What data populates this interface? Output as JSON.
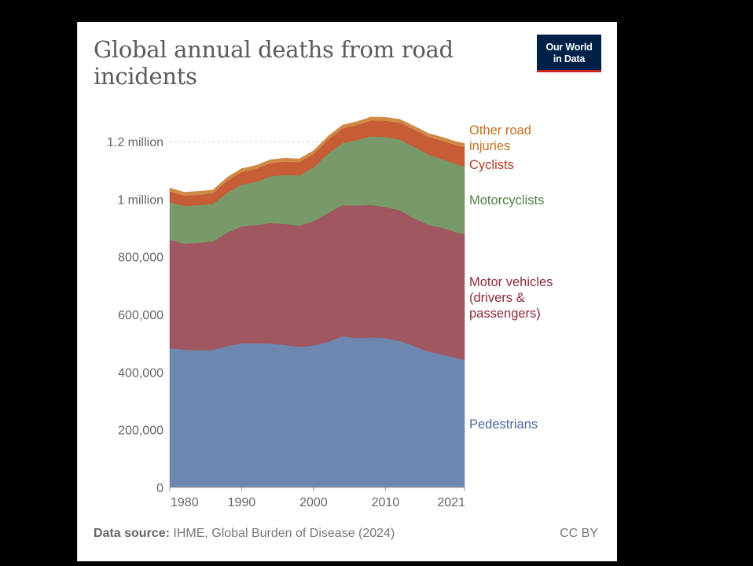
{
  "title": "Global annual deaths from road incidents",
  "logo": {
    "line1": "Our World",
    "line2": "in Data",
    "bg": "#002147",
    "accent": "#ce261e"
  },
  "footer": {
    "source_label": "Data source:",
    "source_text": " IHME, Global Burden of Disease (2024)",
    "license": "CC BY"
  },
  "chart_data": {
    "type": "area",
    "stacked": true,
    "title": "Global annual deaths from road incidents",
    "xlabel": "",
    "ylabel": "",
    "xlim": [
      1980,
      2021
    ],
    "ylim": [
      0,
      1300000
    ],
    "grid": true,
    "x_ticks": [
      1980,
      1990,
      2000,
      2010,
      2021
    ],
    "y_ticks": [
      {
        "value": 0,
        "label": "0"
      },
      {
        "value": 200000,
        "label": "200,000"
      },
      {
        "value": 400000,
        "label": "400,000"
      },
      {
        "value": 600000,
        "label": "600,000"
      },
      {
        "value": 800000,
        "label": "800,000"
      },
      {
        "value": 1000000,
        "label": "1 million"
      },
      {
        "value": 1200000,
        "label": "1.2 million"
      }
    ],
    "legend_placement": "right (inline labels)",
    "x": [
      1980,
      1982,
      1984,
      1986,
      1988,
      1990,
      1992,
      1994,
      1996,
      1998,
      2000,
      2002,
      2004,
      2006,
      2008,
      2010,
      2012,
      2014,
      2016,
      2018,
      2020,
      2021
    ],
    "series": [
      {
        "name": "Pedestrians",
        "label_lines": [
          "Pedestrians"
        ],
        "color": "#6d87b0",
        "text_color": "#4c6a9c",
        "values": [
          483000,
          478000,
          476000,
          477000,
          490000,
          500000,
          500000,
          499000,
          494000,
          488000,
          492000,
          505000,
          524000,
          518000,
          520000,
          518000,
          508000,
          490000,
          471000,
          460000,
          448000,
          442000
        ]
      },
      {
        "name": "Motor vehicles (drivers & passengers)",
        "label_lines": [
          "Motor vehicles",
          "(drivers &",
          "passengers)"
        ],
        "color": "#a0575f",
        "text_color": "#8c2c3c",
        "values": [
          376000,
          368000,
          373000,
          376000,
          394000,
          405000,
          410000,
          418000,
          420000,
          420000,
          432000,
          447000,
          455000,
          460000,
          460000,
          455000,
          453000,
          443000,
          440000,
          440000,
          436000,
          436000
        ]
      },
      {
        "name": "Motorcyclists",
        "label_lines": [
          "Motorcyclists"
        ],
        "color": "#789a6a",
        "text_color": "#4e8240",
        "values": [
          131000,
          130000,
          130000,
          130000,
          138000,
          145000,
          150000,
          162000,
          170000,
          174000,
          185000,
          205000,
          215000,
          227000,
          238000,
          242000,
          246000,
          248000,
          243000,
          238000,
          236000,
          235000
        ]
      },
      {
        "name": "Cyclists",
        "label_lines": [
          "Cyclists"
        ],
        "color": "#c65d37",
        "text_color": "#b53a22",
        "values": [
          37000,
          36000,
          36000,
          37000,
          42000,
          44000,
          45000,
          46000,
          46000,
          46000,
          47000,
          49000,
          51000,
          52000,
          55000,
          57000,
          58000,
          60000,
          62000,
          64000,
          66000,
          68000
        ]
      },
      {
        "name": "Other road injuries",
        "label_lines": [
          "Other road",
          "injuries"
        ],
        "color": "#d08a46",
        "text_color": "#c07020",
        "values": [
          12000,
          12000,
          12000,
          12000,
          12000,
          12000,
          12000,
          12000,
          12000,
          12000,
          12000,
          12000,
          12000,
          12000,
          12000,
          12000,
          12000,
          12000,
          12000,
          12000,
          12000,
          12000
        ]
      }
    ]
  }
}
